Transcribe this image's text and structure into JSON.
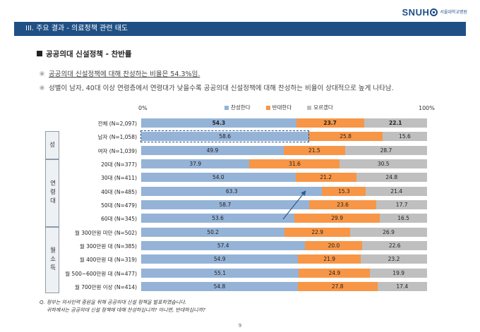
{
  "logo": {
    "text": "SNUH",
    "sub": "서울대학교병원"
  },
  "header": {
    "title": "III. 주요 결과 - 의료정책 관련 태도"
  },
  "section": {
    "title": "공공의대 신설정책 - 찬반률"
  },
  "bullets": [
    {
      "text_before": "공공의대 신설정책에 대해 찬성하는 비율은 ",
      "value": "54.3%임.",
      "underline": true
    },
    {
      "text": "성별이 남자, 40대 이상 연령층에서 연령대가 낮을수록 공공의대 신설정책에 대해 찬성하는 비율이 상대적으로 높게 나타남."
    }
  ],
  "colors": {
    "agree": "#95b3d7",
    "oppose": "#f79646",
    "unknown": "#bfbfbf",
    "header": "#1f4f84"
  },
  "chart_data": {
    "type": "bar",
    "stacked": true,
    "orientation": "horizontal",
    "axis": {
      "min_label": "0%",
      "max_label": "100%",
      "xlim": [
        0,
        100
      ]
    },
    "series_names": [
      "찬성한다",
      "반대한다",
      "모르겠다"
    ],
    "groups": [
      {
        "name": "",
        "rows": [
          {
            "label": "전체 (N=2,097)",
            "values": [
              54.3,
              23.7,
              22.1
            ],
            "bold": true
          }
        ]
      },
      {
        "name": "성",
        "rows": [
          {
            "label": "남자 (N=1,058)",
            "values": [
              58.6,
              25.8,
              15.6
            ],
            "highlight": true
          },
          {
            "label": "여자 (N=1,039)",
            "values": [
              49.9,
              21.5,
              28.7
            ]
          }
        ]
      },
      {
        "name": "연령대",
        "rows": [
          {
            "label": "20대 (N=377)",
            "values": [
              37.9,
              31.6,
              30.5
            ]
          },
          {
            "label": "30대 (N=411)",
            "values": [
              54.0,
              21.2,
              24.8
            ]
          },
          {
            "label": "40대 (N=485)",
            "values": [
              63.3,
              15.3,
              21.4
            ]
          },
          {
            "label": "50대 (N=479)",
            "values": [
              58.7,
              23.6,
              17.7
            ]
          },
          {
            "label": "60대 (N=345)",
            "values": [
              53.6,
              29.9,
              16.5
            ]
          }
        ]
      },
      {
        "name": "월소득",
        "rows": [
          {
            "label": "월 300만원 미만 (N=502)",
            "values": [
              50.2,
              22.9,
              26.9
            ]
          },
          {
            "label": "월 300만원 대 (N=385)",
            "values": [
              57.4,
              20.0,
              22.6
            ]
          },
          {
            "label": "월 400만원 대 (N=319)",
            "values": [
              54.9,
              21.9,
              23.2
            ]
          },
          {
            "label": "월 500~600만원 대 (N=477)",
            "values": [
              55.1,
              24.9,
              19.9
            ]
          },
          {
            "label": "월 700만원 이상 (N=414)",
            "values": [
              54.8,
              27.8,
              17.4
            ]
          }
        ]
      }
    ]
  },
  "question": {
    "line1": "Q. 정부는 의사인력 증원을 위해 공공의대 신설 정책을 발표하였습니다.",
    "line2": "귀하께서는 공공의대 신설 정책에 대해 찬성하십니까?  아니면, 반대하십니까?"
  },
  "page_number": "9"
}
